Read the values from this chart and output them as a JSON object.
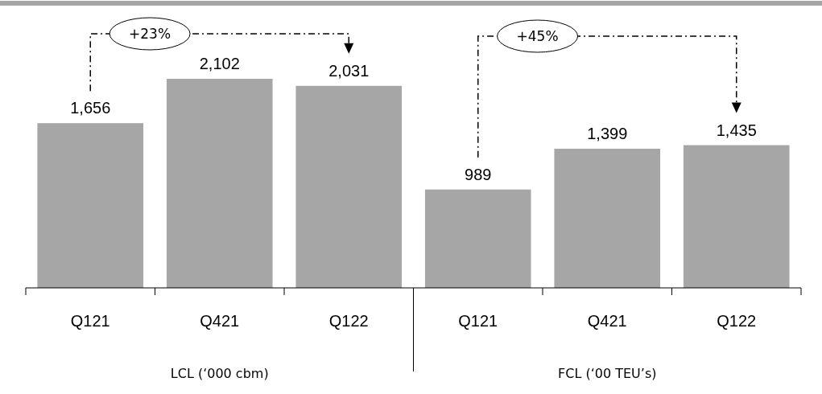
{
  "chart_data": {
    "type": "bar",
    "categories": [
      "Q121",
      "Q421",
      "Q122",
      "Q121",
      "Q421",
      "Q122"
    ],
    "values": [
      1656,
      2102,
      2031,
      989,
      1399,
      1435
    ],
    "color": "#a6a6a6",
    "value_labels": [
      "1,656",
      "2,102",
      "2,031",
      "989",
      "1,399",
      "1,435"
    ],
    "annotations": [
      "+23%",
      "+45%",
      "LCL (‘000 cbm)",
      "FCL (‘00 TEU’s)"
    ]
  }
}
